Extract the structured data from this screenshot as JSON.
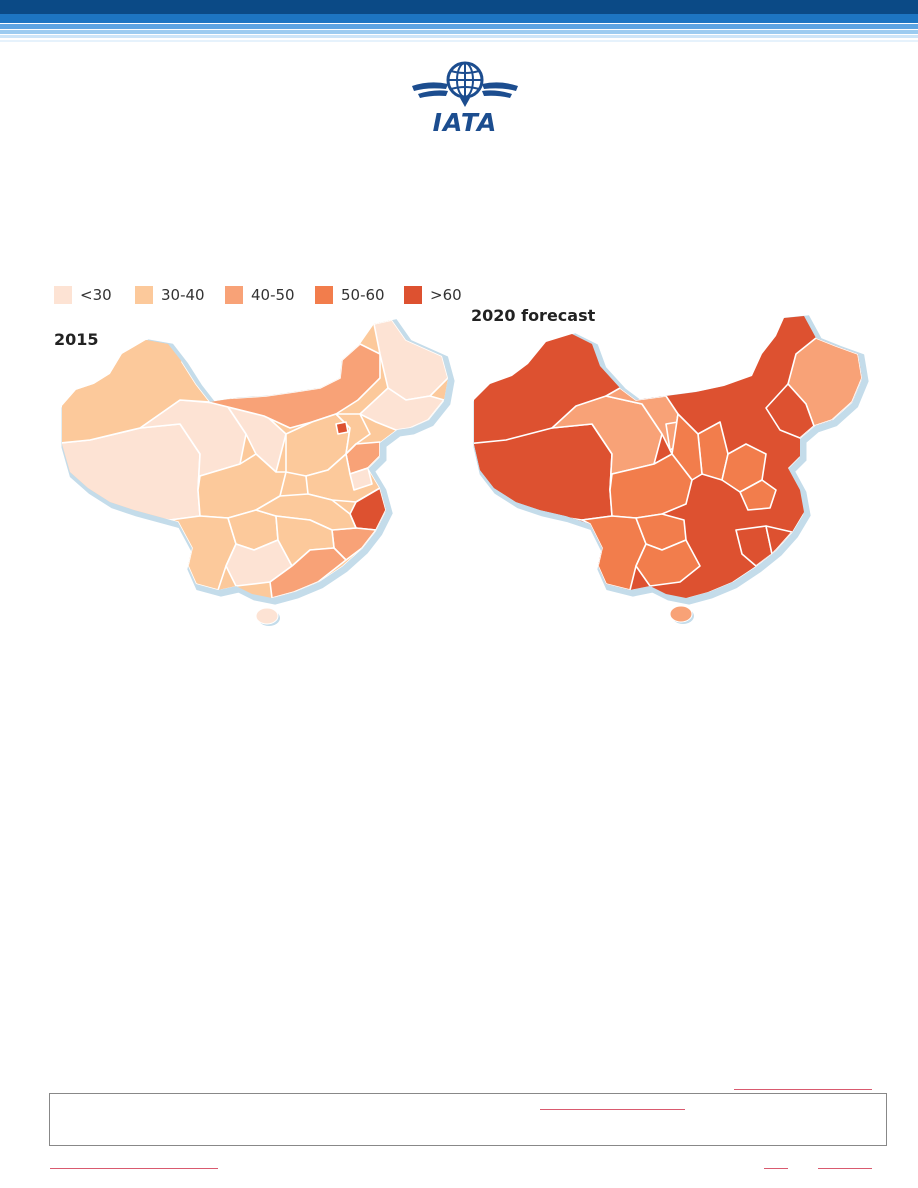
{
  "logo": {
    "text": "IATA",
    "icon": "globe-wings-icon",
    "color": "#1c4d8f"
  },
  "legend": [
    {
      "label": "<30",
      "color": "#fde3d4"
    },
    {
      "label": "30-40",
      "color": "#fcc99b"
    },
    {
      "label": "40-50",
      "color": "#f8a277"
    },
    {
      "label": "50-60",
      "color": "#f27d4c"
    },
    {
      "label": ">60",
      "color": "#dd5130"
    }
  ],
  "maps": [
    {
      "title": "2015"
    },
    {
      "title": "2020 forecast"
    }
  ]
}
